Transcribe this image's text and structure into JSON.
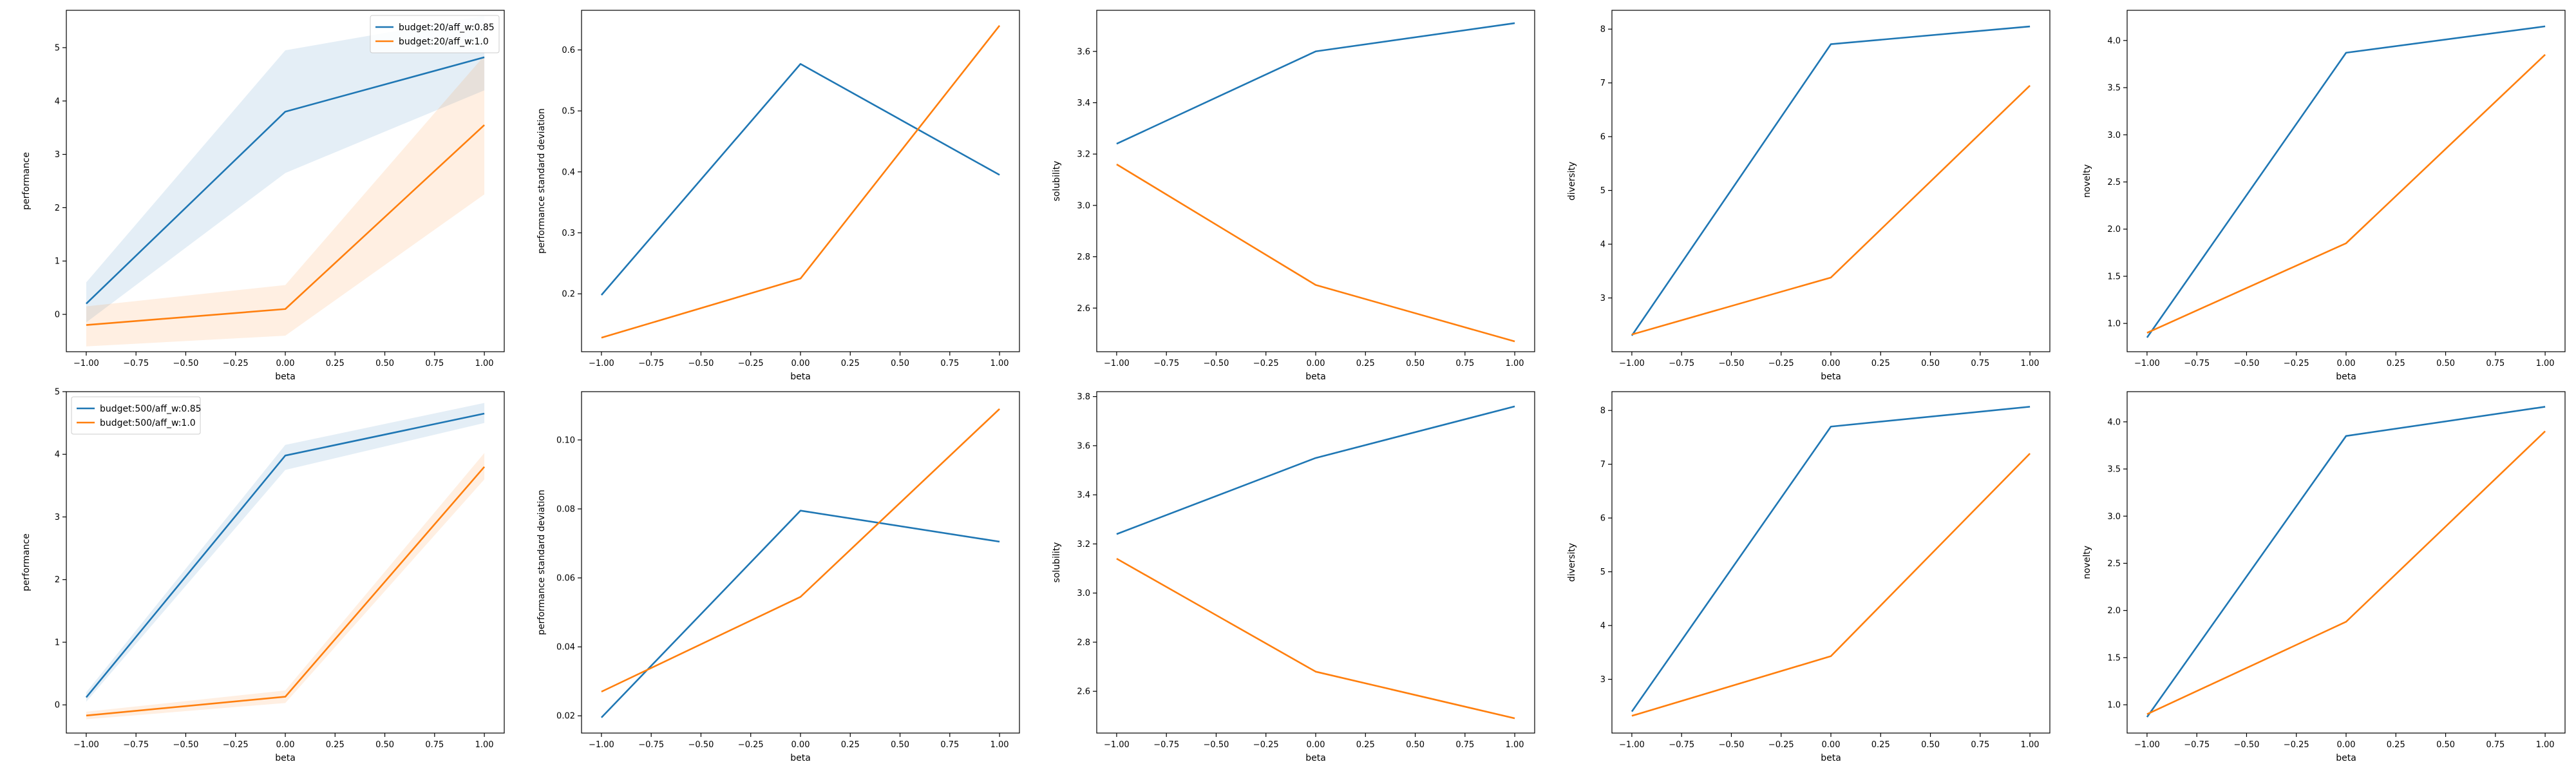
{
  "colors": {
    "blue": "#1f77b4",
    "orange": "#ff7f0e"
  },
  "chart_data": [
    {
      "type": "line",
      "xlabel": "beta",
      "ylabel": "performance",
      "x": [
        -1.0,
        0.0,
        1.0
      ],
      "xlim": [
        -1.1,
        1.1
      ],
      "ylim": [
        -0.7,
        5.7
      ],
      "xticks": [
        -1.0,
        -0.75,
        -0.5,
        -0.25,
        0.0,
        0.25,
        0.5,
        0.75,
        1.0
      ],
      "xtick_labels": [
        "−1.00",
        "−0.75",
        "−0.50",
        "−0.25",
        "0.00",
        "0.25",
        "0.50",
        "0.75",
        "1.00"
      ],
      "yticks": [
        0,
        1,
        2,
        3,
        4,
        5
      ],
      "ytick_labels": [
        "0",
        "1",
        "2",
        "3",
        "4",
        "5"
      ],
      "legend": "top-right",
      "series": [
        {
          "name": "budget:20/aff_w:0.85",
          "color": "blue",
          "values": [
            0.2,
            3.8,
            4.82
          ],
          "lower": [
            -0.15,
            2.65,
            4.2
          ],
          "upper": [
            0.6,
            4.95,
            5.6
          ]
        },
        {
          "name": "budget:20/aff_w:1.0",
          "color": "orange",
          "values": [
            -0.2,
            0.1,
            3.55
          ],
          "lower": [
            -0.6,
            -0.4,
            2.25
          ],
          "upper": [
            0.15,
            0.55,
            4.85
          ]
        }
      ]
    },
    {
      "type": "line",
      "xlabel": "beta",
      "ylabel": "performance standard deviation",
      "x": [
        -1.0,
        0.0,
        1.0
      ],
      "xlim": [
        -1.1,
        1.1
      ],
      "ylim": [
        0.105,
        0.665
      ],
      "xticks": [
        -1.0,
        -0.75,
        -0.5,
        -0.25,
        0.0,
        0.25,
        0.5,
        0.75,
        1.0
      ],
      "xtick_labels": [
        "−1.00",
        "−0.75",
        "−0.50",
        "−0.25",
        "0.00",
        "0.25",
        "0.50",
        "0.75",
        "1.00"
      ],
      "yticks": [
        0.2,
        0.3,
        0.4,
        0.5,
        0.6
      ],
      "ytick_labels": [
        "0.2",
        "0.3",
        "0.4",
        "0.5",
        "0.6"
      ],
      "series": [
        {
          "color": "blue",
          "values": [
            0.198,
            0.577,
            0.395
          ]
        },
        {
          "color": "orange",
          "values": [
            0.128,
            0.225,
            0.64
          ]
        }
      ]
    },
    {
      "type": "line",
      "xlabel": "beta",
      "ylabel": "solubility",
      "x": [
        -1.0,
        0.0,
        1.0
      ],
      "xlim": [
        -1.1,
        1.1
      ],
      "ylim": [
        2.43,
        3.76
      ],
      "xticks": [
        -1.0,
        -0.75,
        -0.5,
        -0.25,
        0.0,
        0.25,
        0.5,
        0.75,
        1.0
      ],
      "xtick_labels": [
        "−1.00",
        "−0.75",
        "−0.50",
        "−0.25",
        "0.00",
        "0.25",
        "0.50",
        "0.75",
        "1.00"
      ],
      "yticks": [
        2.6,
        2.8,
        3.0,
        3.2,
        3.4,
        3.6
      ],
      "ytick_labels": [
        "2.6",
        "2.8",
        "3.0",
        "3.2",
        "3.4",
        "3.6"
      ],
      "series": [
        {
          "color": "blue",
          "values": [
            3.24,
            3.6,
            3.71
          ]
        },
        {
          "color": "orange",
          "values": [
            3.16,
            2.69,
            2.47
          ]
        }
      ]
    },
    {
      "type": "line",
      "xlabel": "beta",
      "ylabel": "diversity",
      "x": [
        -1.0,
        0.0,
        1.0
      ],
      "xlim": [
        -1.1,
        1.1
      ],
      "ylim": [
        2.0,
        8.35
      ],
      "xticks": [
        -1.0,
        -0.75,
        -0.5,
        -0.25,
        0.0,
        0.25,
        0.5,
        0.75,
        1.0
      ],
      "xtick_labels": [
        "−1.00",
        "−0.75",
        "−0.50",
        "−0.25",
        "0.00",
        "0.25",
        "0.50",
        "0.75",
        "1.00"
      ],
      "yticks": [
        3,
        4,
        5,
        6,
        7,
        8
      ],
      "ytick_labels": [
        "3",
        "4",
        "5",
        "6",
        "7",
        "8"
      ],
      "series": [
        {
          "color": "blue",
          "values": [
            2.3,
            7.72,
            8.05
          ]
        },
        {
          "color": "orange",
          "values": [
            2.32,
            3.38,
            6.95
          ]
        }
      ]
    },
    {
      "type": "line",
      "xlabel": "beta",
      "ylabel": "novelty",
      "x": [
        -1.0,
        0.0,
        1.0
      ],
      "xlim": [
        -1.1,
        1.1
      ],
      "ylim": [
        0.7,
        4.32
      ],
      "xticks": [
        -1.0,
        -0.75,
        -0.5,
        -0.25,
        0.0,
        0.25,
        0.5,
        0.75,
        1.0
      ],
      "xtick_labels": [
        "−1.00",
        "−0.75",
        "−0.50",
        "−0.25",
        "0.00",
        "0.25",
        "0.50",
        "0.75",
        "1.00"
      ],
      "yticks": [
        1.0,
        1.5,
        2.0,
        2.5,
        3.0,
        3.5,
        4.0
      ],
      "ytick_labels": [
        "1.0",
        "1.5",
        "2.0",
        "2.5",
        "3.0",
        "3.5",
        "4.0"
      ],
      "series": [
        {
          "color": "blue",
          "values": [
            0.85,
            3.87,
            4.15
          ]
        },
        {
          "color": "orange",
          "values": [
            0.9,
            1.85,
            3.85
          ]
        }
      ]
    },
    {
      "type": "line",
      "xlabel": "beta",
      "ylabel": "performance",
      "x": [
        -1.0,
        0.0,
        1.0
      ],
      "xlim": [
        -1.1,
        1.1
      ],
      "ylim": [
        -0.45,
        5.0
      ],
      "xticks": [
        -1.0,
        -0.75,
        -0.5,
        -0.25,
        0.0,
        0.25,
        0.5,
        0.75,
        1.0
      ],
      "xtick_labels": [
        "−1.00",
        "−0.75",
        "−0.50",
        "−0.25",
        "0.00",
        "0.25",
        "0.50",
        "0.75",
        "1.00"
      ],
      "yticks": [
        0,
        1,
        2,
        3,
        4,
        5
      ],
      "ytick_labels": [
        "0",
        "1",
        "2",
        "3",
        "4",
        "5"
      ],
      "legend": "top-left",
      "series": [
        {
          "name": "budget:500/aff_w:0.85",
          "color": "blue",
          "values": [
            0.12,
            3.98,
            4.65
          ],
          "lower": [
            0.05,
            3.75,
            4.5
          ],
          "upper": [
            0.2,
            4.15,
            4.82
          ]
        },
        {
          "name": "budget:500/aff_w:1.0",
          "color": "orange",
          "values": [
            -0.17,
            0.13,
            3.8
          ],
          "lower": [
            -0.23,
            0.03,
            3.6
          ],
          "upper": [
            -0.11,
            0.23,
            4.02
          ]
        }
      ]
    },
    {
      "type": "line",
      "xlabel": "beta",
      "ylabel": "performance standard deviation",
      "x": [
        -1.0,
        0.0,
        1.0
      ],
      "xlim": [
        -1.1,
        1.1
      ],
      "ylim": [
        0.015,
        0.114
      ],
      "xticks": [
        -1.0,
        -0.75,
        -0.5,
        -0.25,
        0.0,
        0.25,
        0.5,
        0.75,
        1.0
      ],
      "xtick_labels": [
        "−1.00",
        "−0.75",
        "−0.50",
        "−0.25",
        "0.00",
        "0.25",
        "0.50",
        "0.75",
        "1.00"
      ],
      "yticks": [
        0.02,
        0.04,
        0.06,
        0.08,
        0.1
      ],
      "ytick_labels": [
        "0.02",
        "0.04",
        "0.06",
        "0.08",
        "0.10"
      ],
      "series": [
        {
          "color": "blue",
          "values": [
            0.0195,
            0.0795,
            0.0705
          ]
        },
        {
          "color": "orange",
          "values": [
            0.027,
            0.0545,
            0.109
          ]
        }
      ]
    },
    {
      "type": "line",
      "xlabel": "beta",
      "ylabel": "solubility",
      "x": [
        -1.0,
        0.0,
        1.0
      ],
      "xlim": [
        -1.1,
        1.1
      ],
      "ylim": [
        2.43,
        3.82
      ],
      "xticks": [
        -1.0,
        -0.75,
        -0.5,
        -0.25,
        0.0,
        0.25,
        0.5,
        0.75,
        1.0
      ],
      "xtick_labels": [
        "−1.00",
        "−0.75",
        "−0.50",
        "−0.25",
        "0.00",
        "0.25",
        "0.50",
        "0.75",
        "1.00"
      ],
      "yticks": [
        2.6,
        2.8,
        3.0,
        3.2,
        3.4,
        3.6,
        3.8
      ],
      "ytick_labels": [
        "2.6",
        "2.8",
        "3.0",
        "3.2",
        "3.4",
        "3.6",
        "3.8"
      ],
      "series": [
        {
          "color": "blue",
          "values": [
            3.24,
            3.55,
            3.76
          ]
        },
        {
          "color": "orange",
          "values": [
            3.14,
            2.68,
            2.49
          ]
        }
      ]
    },
    {
      "type": "line",
      "xlabel": "beta",
      "ylabel": "diversity",
      "x": [
        -1.0,
        0.0,
        1.0
      ],
      "xlim": [
        -1.1,
        1.1
      ],
      "ylim": [
        2.0,
        8.35
      ],
      "xticks": [
        -1.0,
        -0.75,
        -0.5,
        -0.25,
        0.0,
        0.25,
        0.5,
        0.75,
        1.0
      ],
      "xtick_labels": [
        "−1.00",
        "−0.75",
        "−0.50",
        "−0.25",
        "0.00",
        "0.25",
        "0.50",
        "0.75",
        "1.00"
      ],
      "yticks": [
        3,
        4,
        5,
        6,
        7,
        8
      ],
      "ytick_labels": [
        "3",
        "4",
        "5",
        "6",
        "7",
        "8"
      ],
      "series": [
        {
          "color": "blue",
          "values": [
            2.4,
            7.7,
            8.07
          ]
        },
        {
          "color": "orange",
          "values": [
            2.32,
            3.43,
            7.2
          ]
        }
      ]
    },
    {
      "type": "line",
      "xlabel": "beta",
      "ylabel": "novelty",
      "x": [
        -1.0,
        0.0,
        1.0
      ],
      "xlim": [
        -1.1,
        1.1
      ],
      "ylim": [
        0.7,
        4.32
      ],
      "xticks": [
        -1.0,
        -0.75,
        -0.5,
        -0.25,
        0.0,
        0.25,
        0.5,
        0.75,
        1.0
      ],
      "xtick_labels": [
        "−1.00",
        "−0.75",
        "−0.50",
        "−0.25",
        "0.00",
        "0.25",
        "0.50",
        "0.75",
        "1.00"
      ],
      "yticks": [
        1.0,
        1.5,
        2.0,
        2.5,
        3.0,
        3.5,
        4.0
      ],
      "ytick_labels": [
        "1.0",
        "1.5",
        "2.0",
        "2.5",
        "3.0",
        "3.5",
        "4.0"
      ],
      "series": [
        {
          "color": "blue",
          "values": [
            0.87,
            3.85,
            4.16
          ]
        },
        {
          "color": "orange",
          "values": [
            0.9,
            1.88,
            3.9
          ]
        }
      ]
    }
  ]
}
